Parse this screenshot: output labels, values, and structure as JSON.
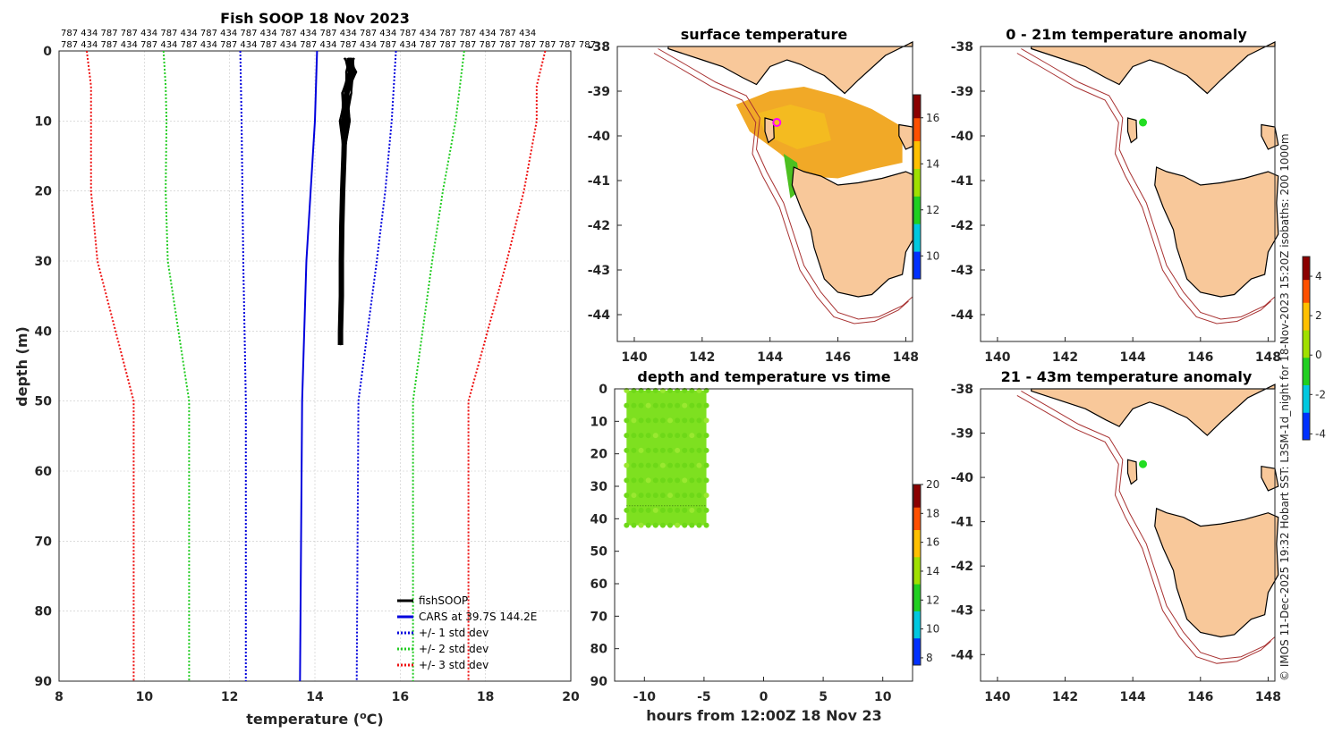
{
  "profile": {
    "title": "Fish SOOP 18 Nov 2023",
    "xlabel": "temperature (",
    "xlabel_unit_sup": "o",
    "xlabel_unit_tail": "C)",
    "ylabel": "depth (m)",
    "counts_row1": "787 434 787 787 434 787 434 787 434 787 434 787 434 787 434 787 434 787 434 787 787 434 787 434",
    "counts_row2": "787 434 787 434 787 434 787 434 787 434 787 434 787 434 787 434 787 434 787 787 787 787 787 787 787 787 787"
  },
  "map_titles": {
    "sst": "surface temperature",
    "anom1": "0 - 21m temperature anomaly",
    "anom2": "21 - 43m temperature anomaly",
    "timeplot": "depth and temperature vs time",
    "time_xlabel": "hours from 12:00Z 18 Nov 23"
  },
  "side_note": "© IMOS 11-Dec-2025 19:32 Hobart SST: L3SM-1d_night for 18-Nov-2023 15:20Z isobaths: 200  1000m",
  "colors": {
    "fishsoop": "#000000",
    "cars": "#0000dd",
    "std1": "#0000dd",
    "std2": "#22cc22",
    "std3": "#ee1111",
    "land": "#f8c89a",
    "isobath": "#a83232",
    "marker_sst": "#ff00ff",
    "marker_anom": "#22dd22"
  },
  "chart_data": [
    {
      "type": "line",
      "title": "Fish SOOP 18 Nov 2023",
      "xlabel": "temperature (oC)",
      "ylabel": "depth (m)",
      "xlim": [
        8,
        20
      ],
      "ylim": [
        90,
        0
      ],
      "xticks": [
        8,
        10,
        12,
        14,
        16,
        18,
        20
      ],
      "yticks": [
        0,
        10,
        20,
        30,
        40,
        50,
        60,
        70,
        80,
        90
      ],
      "grid": true,
      "legend_position": "bottom-right",
      "legend": [
        "fishSOOP",
        "CARS at 39.7S 144.2E",
        "+/- 1 std dev",
        "+/- 2 std dev",
        "+/- 3 std dev"
      ],
      "series": [
        {
          "name": "fishSOOP",
          "depth": [
            1,
            3,
            6,
            10,
            15,
            20,
            25,
            30,
            35,
            40,
            42
          ],
          "temp": [
            14.8,
            14.85,
            14.75,
            14.7,
            14.68,
            14.65,
            14.63,
            14.62,
            14.62,
            14.6,
            14.6
          ]
        },
        {
          "name": "CARS at 39.7S 144.2E",
          "depth": [
            0,
            10,
            20,
            30,
            50,
            90
          ],
          "temp": [
            14.05,
            14.0,
            13.9,
            13.8,
            13.7,
            13.65
          ]
        },
        {
          "name": "+/- 1 std dev (low)",
          "depth": [
            0,
            10,
            20,
            30,
            50,
            90
          ],
          "temp": [
            12.25,
            12.28,
            12.3,
            12.32,
            12.38,
            12.38
          ]
        },
        {
          "name": "+/- 1 std dev (high)",
          "depth": [
            0,
            10,
            20,
            30,
            50,
            90
          ],
          "temp": [
            15.9,
            15.8,
            15.65,
            15.45,
            15.02,
            14.98
          ]
        },
        {
          "name": "+/- 2 std dev (low)",
          "depth": [
            0,
            5,
            10,
            20,
            30,
            50,
            90
          ],
          "temp": [
            10.45,
            10.5,
            10.52,
            10.5,
            10.55,
            11.05,
            11.05
          ]
        },
        {
          "name": "+/- 2 std dev (high)",
          "depth": [
            0,
            5,
            10,
            20,
            30,
            50,
            90
          ],
          "temp": [
            17.5,
            17.4,
            17.3,
            17.0,
            16.75,
            16.3,
            16.3
          ]
        },
        {
          "name": "+/- 3 std dev (low)",
          "depth": [
            0,
            5,
            10,
            20,
            30,
            50,
            90
          ],
          "temp": [
            8.65,
            8.75,
            8.75,
            8.75,
            8.9,
            9.75,
            9.75
          ]
        },
        {
          "name": "+/- 3 std dev (high)",
          "depth": [
            0,
            5,
            10,
            20,
            30,
            50,
            90
          ],
          "temp": [
            19.4,
            19.2,
            19.2,
            18.9,
            18.5,
            17.6,
            17.6
          ]
        }
      ]
    },
    {
      "type": "heatmap",
      "title": "surface temperature",
      "xlim": [
        139.5,
        148.2
      ],
      "ylim": [
        -44.6,
        -38
      ],
      "xticks": [
        140,
        142,
        144,
        146,
        148
      ],
      "yticks": [
        -38,
        -39,
        -40,
        -41,
        -42,
        -43,
        -44
      ],
      "colorbar": {
        "min": 9,
        "max": 17,
        "ticks": [
          10,
          12,
          14,
          16
        ]
      },
      "marker": {
        "lon": 144.2,
        "lat": -39.7
      }
    },
    {
      "type": "heatmap",
      "title": "0 - 21m temperature anomaly",
      "xlim": [
        139.5,
        148.2
      ],
      "ylim": [
        -44.6,
        -38
      ],
      "xticks": [
        140,
        142,
        144,
        146,
        148
      ],
      "yticks": [
        -38,
        -39,
        -40,
        -41,
        -42,
        -43,
        -44
      ],
      "colorbar": {
        "min": -4.3,
        "max": 5,
        "ticks": [
          -4,
          -2,
          0,
          2,
          4
        ]
      },
      "marker": {
        "lon": 144.3,
        "lat": -39.7
      }
    },
    {
      "type": "heatmap",
      "title": "21 - 43m temperature anomaly",
      "xlim": [
        139.5,
        148.2
      ],
      "ylim": [
        -44.6,
        -38
      ],
      "xticks": [
        140,
        142,
        144,
        146,
        148
      ],
      "yticks": [
        -38,
        -39,
        -40,
        -41,
        -42,
        -43,
        -44
      ],
      "marker": {
        "lon": 144.3,
        "lat": -39.7
      }
    },
    {
      "type": "scatter",
      "title": "depth and temperature vs time",
      "xlabel": "hours from 12:00Z 18 Nov 23",
      "xlim": [
        -12.5,
        12.5
      ],
      "ylim": [
        90,
        0
      ],
      "xticks": [
        -10,
        -5,
        0,
        5,
        10
      ],
      "yticks": [
        0,
        10,
        20,
        30,
        40,
        50,
        60,
        70,
        80,
        90
      ],
      "colorbar": {
        "min": 7.5,
        "max": 20,
        "ticks": [
          8,
          10,
          12,
          14,
          16,
          18,
          20
        ]
      },
      "data_extent": {
        "x": [
          -11.5,
          -4.8
        ],
        "depth": [
          0.5,
          42
        ]
      },
      "dominant_temp": 14.6
    }
  ]
}
